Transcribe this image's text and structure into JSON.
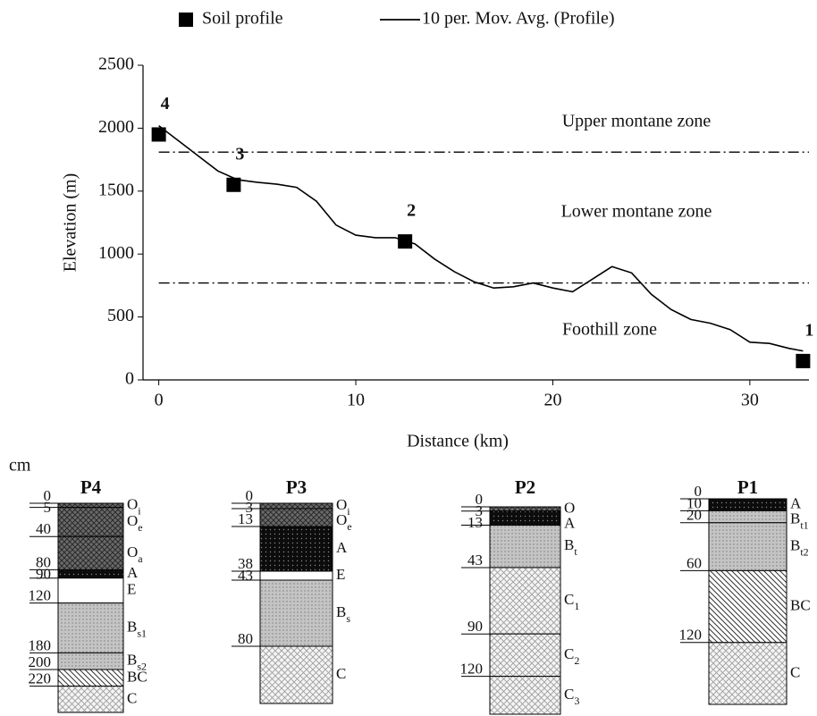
{
  "chart_data": {
    "type": "line",
    "x_label": "Distance (km)",
    "y_label": "Elevation (m)",
    "xlim": [
      -0.8,
      33
    ],
    "xticks": [
      0,
      10,
      20,
      30
    ],
    "ylim": [
      0,
      2500
    ],
    "yticks": [
      0,
      500,
      1000,
      1500,
      2000,
      2500
    ],
    "series": [
      {
        "name": "Soil profile",
        "type": "scatter",
        "color": "#000000",
        "x": [
          0,
          3.8,
          12.5,
          32.7
        ],
        "values": [
          1950,
          1550,
          1100,
          150
        ],
        "point_labels": [
          "4",
          "3",
          "2",
          "1"
        ]
      },
      {
        "name": "10 per. Mov. Avg. (Profile)",
        "type": "line",
        "color": "#000000",
        "x": [
          0,
          1,
          2,
          3,
          4,
          5,
          6,
          7,
          8,
          9,
          10,
          11,
          12,
          13,
          14,
          15,
          16,
          17,
          18,
          19,
          20,
          21,
          22,
          23,
          24,
          25,
          26,
          27,
          28,
          29,
          30,
          31,
          32,
          32.7
        ],
        "values": [
          2020,
          1900,
          1780,
          1660,
          1590,
          1570,
          1555,
          1530,
          1420,
          1230,
          1150,
          1130,
          1130,
          1080,
          960,
          860,
          780,
          730,
          740,
          770,
          730,
          700,
          800,
          900,
          850,
          680,
          560,
          480,
          450,
          400,
          300,
          290,
          250,
          230
        ]
      }
    ],
    "zones": {
      "lines": [
        1810,
        770
      ],
      "labels": [
        "Upper montane zone",
        "Lower montane zone",
        "Foothill zone"
      ]
    }
  },
  "depth_unit": "cm",
  "profiles": [
    {
      "title": "P4",
      "depths": [
        0,
        5,
        40,
        80,
        90,
        120,
        180,
        200,
        220
      ],
      "horizons": [
        {
          "name": "O",
          "sub": "i"
        },
        {
          "name": "O",
          "sub": "e"
        },
        {
          "name": "O",
          "sub": "a"
        },
        {
          "name": "A"
        },
        {
          "name": "E"
        },
        {
          "name": "B",
          "sub": "s1"
        },
        {
          "name": "B",
          "sub": "s2"
        },
        {
          "name": "BC"
        },
        {
          "name": "C"
        }
      ]
    },
    {
      "title": "P3",
      "depths": [
        0,
        3,
        13,
        38,
        43,
        80
      ],
      "horizons": [
        {
          "name": "O",
          "sub": "i"
        },
        {
          "name": "O",
          "sub": "e"
        },
        {
          "name": "A"
        },
        {
          "name": "E"
        },
        {
          "name": "B",
          "sub": "s"
        },
        {
          "name": "C"
        }
      ]
    },
    {
      "title": "P2",
      "depths": [
        0,
        3,
        13,
        43,
        90,
        120
      ],
      "horizons": [
        {
          "name": "O"
        },
        {
          "name": "A"
        },
        {
          "name": "B",
          "sub": "t"
        },
        {
          "name": "C",
          "sub": "1"
        },
        {
          "name": "C",
          "sub": "2"
        },
        {
          "name": "C",
          "sub": "3"
        }
      ]
    },
    {
      "title": "P1",
      "depths": [
        0,
        10,
        20,
        60,
        120
      ],
      "horizons": [
        {
          "name": "A"
        },
        {
          "name": "B",
          "sub": "t1"
        },
        {
          "name": "B",
          "sub": "t2"
        },
        {
          "name": "BC"
        },
        {
          "name": "C"
        }
      ]
    }
  ]
}
